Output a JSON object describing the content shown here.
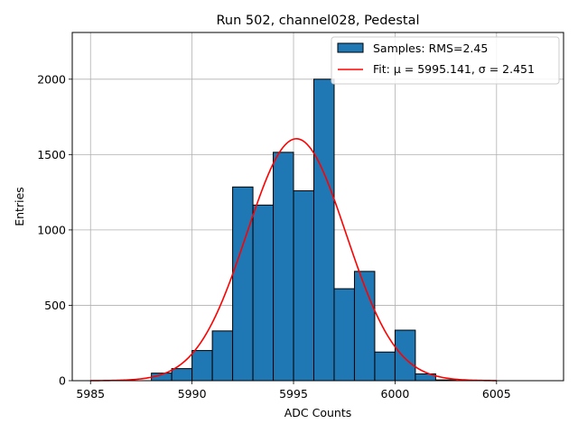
{
  "chart_data": {
    "type": "bar",
    "title": "Run 502, channel028, Pedestal",
    "xlabel": "ADC Counts",
    "ylabel": "Entries",
    "xlim": [
      5984.1,
      6008.3
    ],
    "ylim": [
      0,
      2310
    ],
    "xticks": [
      5985,
      5990,
      5995,
      6000,
      6005
    ],
    "yticks": [
      0,
      500,
      1000,
      1500,
      2000
    ],
    "grid": true,
    "legend_position": "top-right",
    "bin_width": 1,
    "bins": [
      {
        "x0": 5988,
        "count": 50
      },
      {
        "x0": 5989,
        "count": 80
      },
      {
        "x0": 5990,
        "count": 200
      },
      {
        "x0": 5991,
        "count": 330
      },
      {
        "x0": 5992,
        "count": 1285
      },
      {
        "x0": 5993,
        "count": 1165
      },
      {
        "x0": 5994,
        "count": 1515
      },
      {
        "x0": 5995,
        "count": 1260
      },
      {
        "x0": 5996,
        "count": 2000
      },
      {
        "x0": 5997,
        "count": 610
      },
      {
        "x0": 5998,
        "count": 725
      },
      {
        "x0": 5999,
        "count": 190
      },
      {
        "x0": 6000,
        "count": 335
      },
      {
        "x0": 6001,
        "count": 45
      },
      {
        "x0": 6002,
        "count": 5
      }
    ],
    "fit": {
      "mu": 5995.141,
      "sigma": 2.451,
      "amplitude": 1605,
      "x_range": [
        5985,
        6005
      ]
    },
    "legend": [
      {
        "label": "Samples: RMS=2.45",
        "kind": "patch",
        "color": "#1f77b4"
      },
      {
        "label": "Fit: μ = 5995.141, σ = 2.451",
        "kind": "line",
        "color": "#ff0000"
      }
    ],
    "colors": {
      "bar_fill": "#1f77b4",
      "bar_edge": "#000000",
      "fit_line": "#ff0000",
      "grid": "#b0b0b0"
    }
  }
}
